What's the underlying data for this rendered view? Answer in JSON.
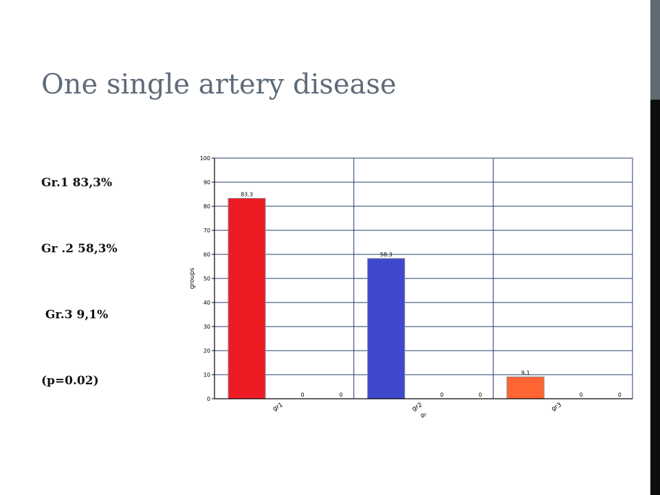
{
  "slide": {
    "title": "One single artery disease",
    "lines": [
      "Gr.1 83,3%",
      "Gr .2 58,3%",
      " Gr.3 9,1%",
      "(p=0.02)"
    ]
  },
  "colors": {
    "sidebar_top": "#5f6b73",
    "sidebar_bottom": "#0d0d0d"
  },
  "chart_data": {
    "type": "bar",
    "ylabel": "groups",
    "xlabel": "gr",
    "ylim": [
      0,
      100
    ],
    "yticks": [
      0,
      10,
      20,
      30,
      40,
      50,
      60,
      70,
      80,
      90,
      100
    ],
    "grid": true,
    "legend": "none",
    "groups": [
      {
        "label": "gr1",
        "values": [
          83.3,
          0,
          0
        ],
        "value_labels": [
          "83.3",
          "0",
          "0"
        ],
        "color": "#ed1c24"
      },
      {
        "label": "gr2",
        "values": [
          58.3,
          0,
          0
        ],
        "value_labels": [
          "58.3",
          "0",
          "0"
        ],
        "color": "#3f48cc"
      },
      {
        "label": "gr3",
        "values": [
          9.1,
          0,
          0
        ],
        "value_labels": [
          "9.1",
          "0",
          "0"
        ],
        "color": "#ff6633"
      }
    ]
  }
}
